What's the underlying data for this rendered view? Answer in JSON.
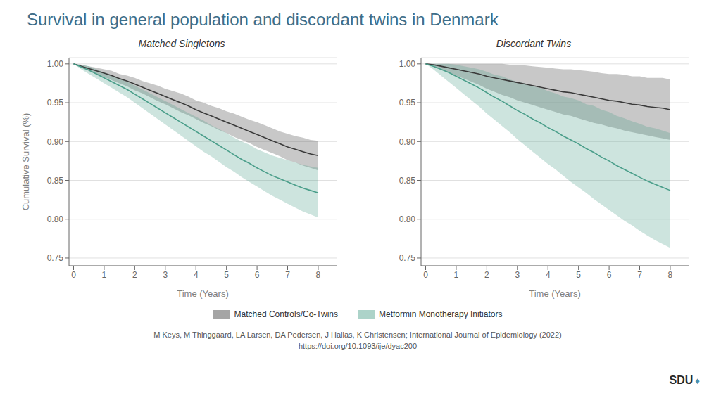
{
  "title": "Survival in general population and discordant twins in Denmark",
  "color": "#3d6e8a",
  "annotations": [
    "M Keys, M Thinggaard, LA Larsen, DA Pedersen, J Hallas, K Christensen; International Journal of Epidemiology (2022)",
    "https://doi.org/10.1093/ije/dyac200",
    "SDU",
    "♦"
  ],
  "chart_data": [
    {
      "type": "line",
      "title": "Matched Singletons",
      "xlabel": "Time (Years)",
      "ylabel": "Cumulative Survival (%)",
      "xlim": [
        -0.15,
        8.6
      ],
      "ylim": [
        0.74,
        1.008
      ],
      "xticks": [
        0,
        1,
        2,
        3,
        4,
        5,
        6,
        7,
        8
      ],
      "yticks": [
        0.75,
        {
          "value": 0.8,
          "label": "0.80"
        },
        0.85,
        {
          "value": 0.9,
          "label": "0.90"
        },
        0.95,
        {
          "value": 1.0,
          "label": "1.00"
        }
      ],
      "grid": true,
      "x": [
        0,
        0.25,
        0.5,
        0.75,
        1.0,
        1.25,
        1.5,
        1.75,
        2.0,
        2.25,
        2.5,
        2.75,
        3.0,
        3.25,
        3.5,
        3.75,
        4.0,
        4.25,
        4.5,
        4.75,
        5.0,
        5.25,
        5.5,
        5.75,
        6.0,
        6.25,
        6.5,
        6.75,
        7.0,
        7.25,
        7.5,
        7.75,
        8.0
      ],
      "series": [
        {
          "name": "Matched Controls/Co-Twins",
          "color": "#3a3a3a",
          "values": [
            1.0,
            0.997,
            0.994,
            0.991,
            0.988,
            0.985,
            0.981,
            0.978,
            0.974,
            0.97,
            0.966,
            0.962,
            0.958,
            0.954,
            0.95,
            0.946,
            0.941,
            0.937,
            0.933,
            0.929,
            0.925,
            0.921,
            0.917,
            0.913,
            0.909,
            0.905,
            0.901,
            0.897,
            0.893,
            0.89,
            0.887,
            0.884,
            0.882
          ],
          "lo": [
            1.0,
            0.995,
            0.991,
            0.987,
            0.983,
            0.979,
            0.975,
            0.971,
            0.966,
            0.962,
            0.957,
            0.952,
            0.948,
            0.943,
            0.938,
            0.934,
            0.929,
            0.924,
            0.92,
            0.915,
            0.911,
            0.906,
            0.902,
            0.898,
            0.893,
            0.889,
            0.885,
            0.881,
            0.876,
            0.873,
            0.869,
            0.866,
            0.863
          ],
          "hi": [
            1.0,
            0.999,
            0.997,
            0.995,
            0.993,
            0.991,
            0.987,
            0.985,
            0.982,
            0.978,
            0.975,
            0.972,
            0.968,
            0.965,
            0.962,
            0.958,
            0.953,
            0.95,
            0.946,
            0.943,
            0.939,
            0.936,
            0.932,
            0.928,
            0.925,
            0.921,
            0.917,
            0.913,
            0.91,
            0.907,
            0.905,
            0.902,
            0.901
          ]
        },
        {
          "name": "Metformin Monotherapy Initiators",
          "color": "#4a9e8a",
          "values": [
            1.0,
            0.996,
            0.992,
            0.987,
            0.982,
            0.977,
            0.972,
            0.967,
            0.961,
            0.955,
            0.949,
            0.943,
            0.937,
            0.931,
            0.925,
            0.919,
            0.913,
            0.907,
            0.901,
            0.895,
            0.889,
            0.883,
            0.877,
            0.872,
            0.866,
            0.861,
            0.856,
            0.852,
            0.848,
            0.844,
            0.84,
            0.837,
            0.834
          ],
          "lo": [
            1.0,
            0.993,
            0.987,
            0.981,
            0.975,
            0.969,
            0.963,
            0.957,
            0.95,
            0.943,
            0.936,
            0.929,
            0.922,
            0.915,
            0.908,
            0.901,
            0.894,
            0.887,
            0.881,
            0.874,
            0.867,
            0.861,
            0.854,
            0.848,
            0.842,
            0.836,
            0.83,
            0.825,
            0.82,
            0.815,
            0.81,
            0.806,
            0.802
          ],
          "hi": [
            1.0,
            0.999,
            0.997,
            0.993,
            0.989,
            0.985,
            0.981,
            0.977,
            0.972,
            0.967,
            0.962,
            0.957,
            0.952,
            0.947,
            0.942,
            0.937,
            0.932,
            0.927,
            0.921,
            0.916,
            0.911,
            0.905,
            0.9,
            0.896,
            0.89,
            0.886,
            0.882,
            0.879,
            0.876,
            0.873,
            0.87,
            0.868,
            0.866
          ]
        }
      ]
    },
    {
      "type": "line",
      "title": "Discordant Twins",
      "xlabel": "Time (Years)",
      "xlim": [
        -0.15,
        8.6
      ],
      "ylim": [
        0.74,
        1.008
      ],
      "xticks": [
        0,
        1,
        2,
        3,
        4,
        5,
        6,
        7,
        8
      ],
      "yticks": [
        0.75,
        {
          "value": 0.8,
          "label": "0.80"
        },
        0.85,
        {
          "value": 0.9,
          "label": "0.90"
        },
        0.95,
        {
          "value": 1.0,
          "label": "1.00"
        }
      ],
      "grid": true,
      "x": [
        0,
        0.25,
        0.5,
        0.75,
        1.0,
        1.25,
        1.5,
        1.75,
        2.0,
        2.25,
        2.5,
        2.75,
        3.0,
        3.25,
        3.5,
        3.75,
        4.0,
        4.25,
        4.5,
        4.75,
        5.0,
        5.25,
        5.5,
        5.75,
        6.0,
        6.25,
        6.5,
        6.75,
        7.0,
        7.25,
        7.5,
        7.75,
        8.0
      ],
      "series": [
        {
          "name": "Matched Controls/Co-Twins",
          "color": "#3a3a3a",
          "values": [
            1.0,
            0.999,
            0.997,
            0.995,
            0.993,
            0.991,
            0.989,
            0.987,
            0.984,
            0.982,
            0.98,
            0.978,
            0.976,
            0.974,
            0.972,
            0.97,
            0.968,
            0.966,
            0.964,
            0.963,
            0.961,
            0.959,
            0.957,
            0.955,
            0.953,
            0.952,
            0.95,
            0.948,
            0.947,
            0.945,
            0.944,
            0.943,
            0.941
          ],
          "lo": [
            1.0,
            0.997,
            0.993,
            0.989,
            0.985,
            0.981,
            0.977,
            0.973,
            0.968,
            0.964,
            0.96,
            0.957,
            0.953,
            0.95,
            0.947,
            0.944,
            0.941,
            0.938,
            0.935,
            0.933,
            0.93,
            0.927,
            0.924,
            0.922,
            0.919,
            0.917,
            0.914,
            0.912,
            0.91,
            0.908,
            0.906,
            0.904,
            0.902
          ],
          "hi": [
            1.0,
            1.0,
            1.0,
            1.0,
            1.0,
            1.0,
            1.0,
            1.0,
            1.0,
            1.0,
            1.0,
            0.999,
            0.999,
            0.998,
            0.997,
            0.996,
            0.995,
            0.994,
            0.993,
            0.993,
            0.992,
            0.991,
            0.99,
            0.988,
            0.987,
            0.987,
            0.986,
            0.984,
            0.984,
            0.982,
            0.982,
            0.982,
            0.98
          ]
        },
        {
          "name": "Metformin Monotherapy Initiators",
          "color": "#4a9e8a",
          "values": [
            1.0,
            0.997,
            0.993,
            0.989,
            0.984,
            0.979,
            0.974,
            0.969,
            0.963,
            0.957,
            0.952,
            0.946,
            0.94,
            0.935,
            0.929,
            0.924,
            0.918,
            0.913,
            0.907,
            0.902,
            0.897,
            0.891,
            0.886,
            0.88,
            0.875,
            0.869,
            0.864,
            0.859,
            0.854,
            0.849,
            0.845,
            0.841,
            0.837
          ],
          "lo": [
            1.0,
            0.993,
            0.985,
            0.977,
            0.969,
            0.961,
            0.953,
            0.945,
            0.936,
            0.928,
            0.92,
            0.912,
            0.903,
            0.895,
            0.887,
            0.879,
            0.871,
            0.864,
            0.856,
            0.848,
            0.841,
            0.834,
            0.826,
            0.819,
            0.812,
            0.805,
            0.798,
            0.792,
            0.785,
            0.779,
            0.773,
            0.768,
            0.763
          ],
          "hi": [
            1.0,
            1.0,
            1.0,
            1.0,
            0.999,
            0.997,
            0.995,
            0.993,
            0.99,
            0.986,
            0.984,
            0.98,
            0.977,
            0.975,
            0.971,
            0.969,
            0.965,
            0.962,
            0.958,
            0.956,
            0.953,
            0.948,
            0.946,
            0.941,
            0.938,
            0.933,
            0.93,
            0.926,
            0.923,
            0.919,
            0.917,
            0.914,
            0.911
          ]
        }
      ]
    }
  ]
}
